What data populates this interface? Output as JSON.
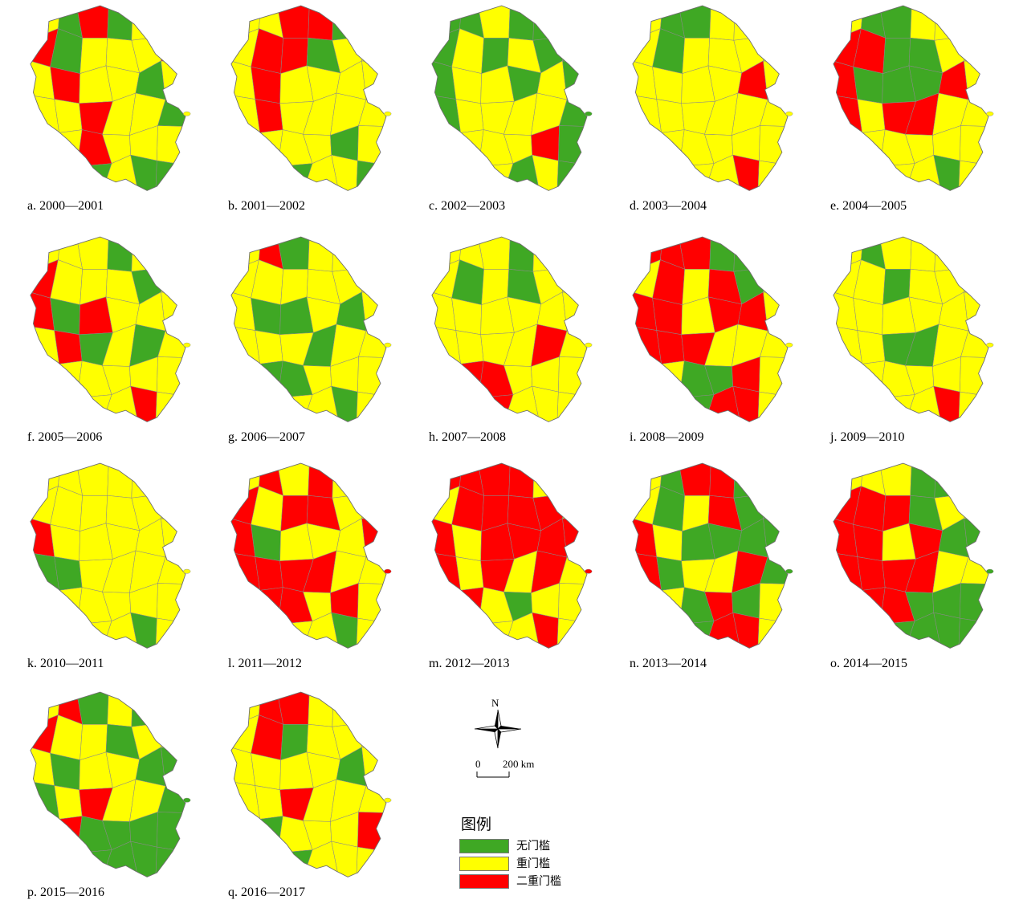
{
  "colors": {
    "none": "#3fa824",
    "single": "#ffff00",
    "double": "#ff0000"
  },
  "panels": [
    {
      "caption": "a. 2000—2001",
      "pattern": [
        1,
        0,
        2,
        0,
        1,
        1,
        2,
        0,
        1,
        1,
        1,
        2,
        1,
        2,
        1,
        1,
        0,
        1,
        1,
        1,
        2,
        1,
        1,
        0,
        1,
        1,
        2,
        1,
        1,
        1,
        1,
        0,
        0,
        1,
        0,
        0
      ]
    },
    {
      "caption": "b. 2001—2002",
      "pattern": [
        1,
        1,
        2,
        2,
        0,
        0,
        1,
        2,
        2,
        0,
        1,
        1,
        1,
        2,
        1,
        1,
        1,
        1,
        1,
        2,
        1,
        1,
        1,
        1,
        1,
        1,
        1,
        1,
        0,
        1,
        1,
        1,
        0,
        1,
        1,
        0
      ]
    },
    {
      "caption": "c. 2002—2003",
      "pattern": [
        0,
        0,
        1,
        0,
        0,
        1,
        0,
        1,
        0,
        1,
        0,
        0,
        0,
        1,
        1,
        0,
        1,
        0,
        0,
        1,
        1,
        1,
        1,
        0,
        1,
        1,
        1,
        1,
        2,
        0,
        1,
        1,
        1,
        0,
        1,
        0
      ]
    },
    {
      "caption": "d. 2003—2004",
      "pattern": [
        1,
        0,
        0,
        1,
        1,
        1,
        1,
        0,
        1,
        1,
        1,
        1,
        1,
        1,
        1,
        1,
        2,
        1,
        1,
        1,
        1,
        1,
        1,
        1,
        1,
        1,
        1,
        1,
        1,
        1,
        1,
        1,
        1,
        1,
        2,
        1
      ]
    },
    {
      "caption": "e. 2004—2005",
      "pattern": [
        1,
        0,
        0,
        1,
        1,
        1,
        2,
        2,
        0,
        0,
        1,
        1,
        2,
        0,
        0,
        0,
        2,
        1,
        2,
        1,
        2,
        2,
        1,
        1,
        1,
        1,
        1,
        1,
        1,
        1,
        1,
        1,
        1,
        1,
        0,
        1
      ]
    },
    {
      "caption": "f. 2005—2006",
      "pattern": [
        1,
        1,
        1,
        0,
        1,
        1,
        2,
        1,
        1,
        1,
        0,
        1,
        2,
        0,
        2,
        1,
        1,
        1,
        1,
        2,
        0,
        1,
        0,
        1,
        1,
        1,
        1,
        1,
        1,
        1,
        1,
        1,
        1,
        1,
        2,
        1
      ]
    },
    {
      "caption": "g. 2006—2007",
      "pattern": [
        1,
        2,
        0,
        1,
        1,
        1,
        1,
        1,
        1,
        1,
        1,
        1,
        1,
        0,
        0,
        1,
        0,
        1,
        1,
        1,
        1,
        0,
        1,
        1,
        1,
        0,
        0,
        1,
        1,
        1,
        1,
        1,
        1,
        1,
        0,
        1
      ]
    },
    {
      "caption": "h. 2007—2008",
      "pattern": [
        1,
        1,
        1,
        0,
        1,
        1,
        1,
        0,
        1,
        0,
        1,
        1,
        1,
        1,
        1,
        1,
        1,
        1,
        1,
        1,
        1,
        1,
        2,
        1,
        1,
        2,
        2,
        1,
        1,
        1,
        1,
        1,
        2,
        1,
        1,
        1
      ]
    },
    {
      "caption": "i. 2008—2009",
      "pattern": [
        2,
        2,
        2,
        0,
        0,
        1,
        1,
        2,
        1,
        2,
        0,
        1,
        2,
        2,
        1,
        2,
        2,
        1,
        2,
        2,
        2,
        1,
        1,
        1,
        1,
        1,
        0,
        0,
        2,
        1,
        1,
        1,
        0,
        2,
        2,
        1
      ]
    },
    {
      "caption": "j. 2009—2010",
      "pattern": [
        1,
        0,
        1,
        1,
        1,
        1,
        1,
        1,
        0,
        1,
        1,
        1,
        1,
        1,
        1,
        1,
        1,
        1,
        1,
        1,
        0,
        0,
        1,
        1,
        1,
        1,
        1,
        1,
        1,
        1,
        1,
        1,
        1,
        1,
        2,
        1
      ]
    },
    {
      "caption": "k. 2010—2011",
      "pattern": [
        1,
        1,
        1,
        1,
        1,
        1,
        1,
        1,
        1,
        1,
        1,
        1,
        2,
        1,
        1,
        1,
        1,
        1,
        0,
        0,
        1,
        1,
        1,
        1,
        0,
        1,
        1,
        1,
        1,
        1,
        1,
        1,
        1,
        1,
        0,
        1
      ]
    },
    {
      "caption": "l. 2011—2012",
      "pattern": [
        1,
        2,
        1,
        2,
        1,
        1,
        2,
        1,
        2,
        2,
        1,
        1,
        2,
        0,
        1,
        1,
        1,
        2,
        2,
        2,
        2,
        2,
        1,
        1,
        1,
        2,
        2,
        1,
        2,
        1,
        1,
        1,
        1,
        1,
        0,
        1
      ]
    },
    {
      "caption": "m. 2012—2013",
      "pattern": [
        2,
        2,
        2,
        2,
        1,
        1,
        1,
        2,
        2,
        2,
        2,
        1,
        2,
        1,
        2,
        2,
        2,
        2,
        2,
        1,
        2,
        1,
        2,
        1,
        1,
        2,
        1,
        0,
        1,
        1,
        1,
        1,
        1,
        1,
        2,
        1
      ]
    },
    {
      "caption": "n. 2013—2014",
      "pattern": [
        1,
        0,
        2,
        2,
        0,
        1,
        1,
        0,
        1,
        2,
        0,
        0,
        2,
        1,
        0,
        0,
        0,
        0,
        2,
        0,
        1,
        1,
        2,
        0,
        1,
        1,
        0,
        2,
        0,
        1,
        1,
        1,
        0,
        2,
        2,
        1
      ]
    },
    {
      "caption": "o. 2014—2015",
      "pattern": [
        1,
        1,
        1,
        0,
        0,
        1,
        2,
        2,
        2,
        0,
        1,
        1,
        2,
        2,
        1,
        2,
        0,
        0,
        2,
        2,
        2,
        2,
        1,
        1,
        1,
        2,
        2,
        0,
        0,
        0,
        1,
        1,
        0,
        0,
        0,
        0
      ]
    },
    {
      "caption": "p. 2015—2016",
      "pattern": [
        1,
        2,
        0,
        1,
        0,
        1,
        2,
        1,
        1,
        0,
        1,
        1,
        1,
        0,
        1,
        1,
        0,
        0,
        0,
        1,
        2,
        1,
        1,
        0,
        1,
        2,
        0,
        0,
        0,
        0,
        1,
        0,
        0,
        0,
        0,
        0
      ]
    },
    {
      "caption": "q. 2016—2017",
      "pattern": [
        1,
        2,
        2,
        1,
        1,
        1,
        1,
        2,
        0,
        1,
        1,
        1,
        1,
        1,
        1,
        1,
        0,
        1,
        1,
        1,
        2,
        1,
        1,
        1,
        1,
        0,
        1,
        1,
        1,
        2,
        1,
        1,
        0,
        1,
        1,
        1
      ]
    }
  ],
  "compass": {
    "north_label": "N"
  },
  "scale": {
    "zero_label": "0",
    "distance_label": "200 km"
  },
  "legend": {
    "title": "图例",
    "items": [
      {
        "label": "无门槛",
        "color": "#3fa824"
      },
      {
        "label": "重门槛",
        "color": "#ffff00"
      },
      {
        "label": "二重门槛",
        "color": "#ff0000"
      }
    ]
  }
}
